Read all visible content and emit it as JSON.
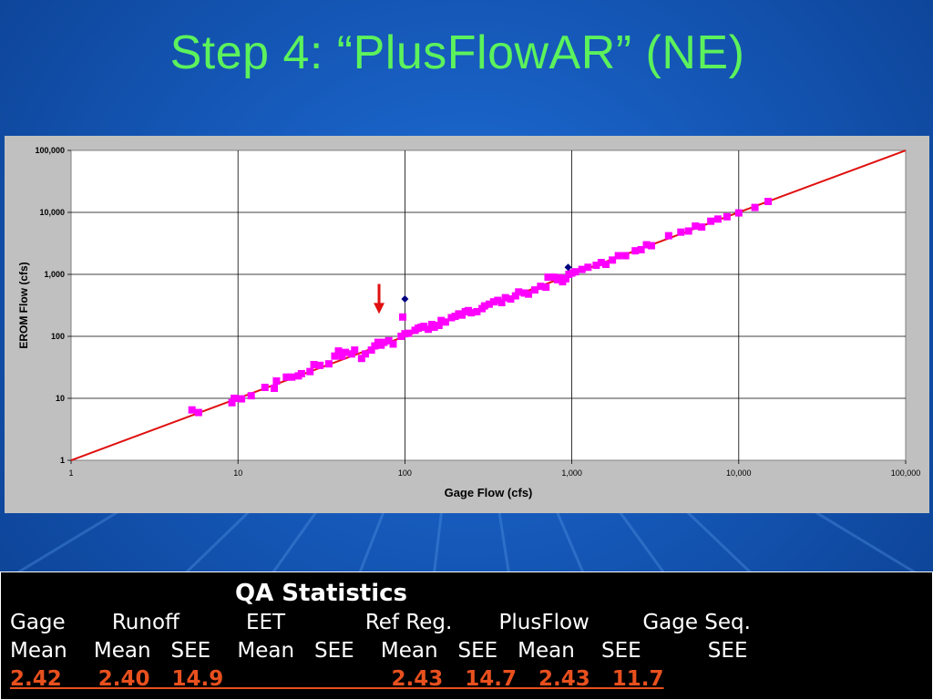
{
  "slide": {
    "title": "Step 4: “PlusFlowAR” (NE)"
  },
  "colors": {
    "title": "#5cf25c",
    "regression_line": "#e01010",
    "pink_series": "#ff00ff",
    "navy_series": "#000080",
    "arrow": "#e01010",
    "qa_values": "#e8501e"
  },
  "chart_data": {
    "type": "scatter",
    "title": "",
    "xlabel": "Gage Flow (cfs)",
    "ylabel": "EROM Flow (cfs)",
    "x_scale": "log",
    "y_scale": "log",
    "xlim": [
      1,
      100000
    ],
    "ylim": [
      1,
      100000
    ],
    "x_ticks": [
      "1",
      "10",
      "100",
      "1,000",
      "10,000",
      "100,000"
    ],
    "y_ticks": [
      "1",
      "10",
      "100",
      "1,000",
      "10,000",
      "100,000"
    ],
    "grid": true,
    "legend": "none",
    "reference_line": {
      "from": [
        1,
        1
      ],
      "to": [
        100000,
        100000
      ]
    },
    "annotation_arrow": {
      "x": 70,
      "y_from": 700,
      "y_to": 230
    },
    "series": [
      {
        "marker": "square",
        "points": [
          [
            5.3,
            6.5
          ],
          [
            5.8,
            5.9
          ],
          [
            9.2,
            8.5
          ],
          [
            9.5,
            10
          ],
          [
            10.5,
            9.8
          ],
          [
            12,
            11
          ],
          [
            14.5,
            15
          ],
          [
            16.5,
            14.5
          ],
          [
            17,
            19
          ],
          [
            19.5,
            22
          ],
          [
            21,
            22
          ],
          [
            23,
            23
          ],
          [
            24,
            25
          ],
          [
            27,
            27
          ],
          [
            28.5,
            35
          ],
          [
            31,
            34
          ],
          [
            35,
            36
          ],
          [
            38,
            48
          ],
          [
            40,
            58
          ],
          [
            42,
            48
          ],
          [
            44,
            55
          ],
          [
            48,
            52
          ],
          [
            50,
            60
          ],
          [
            55,
            44
          ],
          [
            58,
            52
          ],
          [
            63,
            60
          ],
          [
            66,
            70
          ],
          [
            69,
            80
          ],
          [
            72,
            72
          ],
          [
            75,
            80
          ],
          [
            80,
            85
          ],
          [
            85,
            75
          ],
          [
            95,
            100
          ],
          [
            97,
            205
          ],
          [
            100,
            110
          ],
          [
            105,
            112
          ],
          [
            115,
            125
          ],
          [
            120,
            135
          ],
          [
            125,
            140
          ],
          [
            130,
            145
          ],
          [
            138,
            130
          ],
          [
            145,
            155
          ],
          [
            150,
            140
          ],
          [
            160,
            150
          ],
          [
            165,
            180
          ],
          [
            175,
            170
          ],
          [
            190,
            200
          ],
          [
            200,
            210
          ],
          [
            210,
            230
          ],
          [
            220,
            220
          ],
          [
            230,
            250
          ],
          [
            240,
            260
          ],
          [
            250,
            240
          ],
          [
            270,
            250
          ],
          [
            290,
            280
          ],
          [
            300,
            310
          ],
          [
            320,
            330
          ],
          [
            340,
            360
          ],
          [
            360,
            380
          ],
          [
            380,
            350
          ],
          [
            400,
            420
          ],
          [
            430,
            400
          ],
          [
            460,
            450
          ],
          [
            480,
            520
          ],
          [
            520,
            500
          ],
          [
            550,
            480
          ],
          [
            600,
            560
          ],
          [
            650,
            640
          ],
          [
            700,
            620
          ],
          [
            720,
            900
          ],
          [
            780,
            900
          ],
          [
            820,
            820
          ],
          [
            850,
            880
          ],
          [
            880,
            760
          ],
          [
            920,
            850
          ],
          [
            960,
            1000
          ],
          [
            1000,
            1050
          ],
          [
            1050,
            1100
          ],
          [
            1150,
            1200
          ],
          [
            1250,
            1300
          ],
          [
            1400,
            1400
          ],
          [
            1500,
            1550
          ],
          [
            1600,
            1450
          ],
          [
            1750,
            1700
          ],
          [
            1900,
            2000
          ],
          [
            2100,
            2000
          ],
          [
            2400,
            2400
          ],
          [
            2600,
            2500
          ],
          [
            2800,
            3000
          ],
          [
            3000,
            2900
          ],
          [
            3800,
            4200
          ],
          [
            4500,
            4800
          ],
          [
            5000,
            5000
          ],
          [
            5500,
            6000
          ],
          [
            6000,
            5800
          ],
          [
            6800,
            7200
          ],
          [
            7500,
            7800
          ],
          [
            8500,
            8500
          ],
          [
            10000,
            9800
          ],
          [
            12500,
            12000
          ],
          [
            15000,
            15000
          ]
        ]
      },
      {
        "marker": "diamond",
        "points": [
          [
            100,
            400
          ],
          [
            950,
            1300
          ]
        ]
      }
    ]
  },
  "qa": {
    "heading": "QA Statistics",
    "row1": "Gage       Runoff          EET            Ref Reg.       PlusFlow        Gage Seq.",
    "row2": "Mean    Mean   SEE    Mean   SEE    Mean   SEE   Mean    SEE          SEE",
    "row3": "2.42     2.40   14.9                       2.43   14.7   2.43   11.7"
  }
}
